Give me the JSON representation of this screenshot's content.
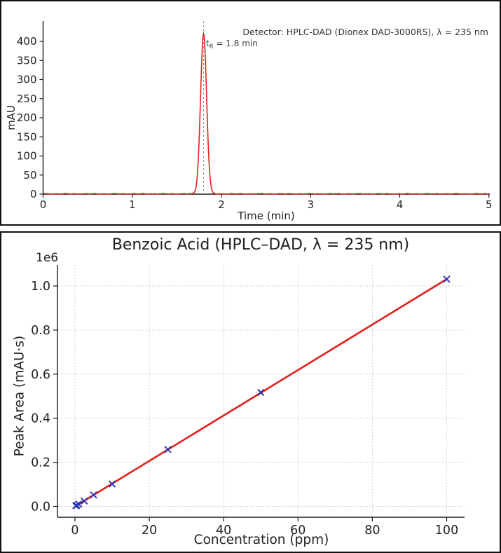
{
  "chart_data": [
    {
      "type": "line",
      "name": "hplc-chromatogram",
      "xlabel": "Time (min)",
      "ylabel": "mAU",
      "xlim": [
        0,
        5
      ],
      "ylim": [
        0,
        455
      ],
      "xticks": [
        0,
        1,
        2,
        3,
        4,
        5
      ],
      "xtick_labels": [
        "0",
        "1",
        "2",
        "3",
        "4",
        "5"
      ],
      "yticks": [
        0,
        50,
        100,
        150,
        200,
        250,
        300,
        350,
        400
      ],
      "ytick_labels": [
        "0",
        "50",
        "100",
        "150",
        "200",
        "250",
        "300",
        "350",
        "400"
      ],
      "grid": false,
      "line_color": "#e02420",
      "baseline_mAU": 1,
      "peak": {
        "retention_time_min": 1.8,
        "height_mAU": 420,
        "sigma_min": 0.034
      },
      "marker_line": {
        "x": 1.8,
        "color": "#8a8a8a",
        "style": "dashed"
      },
      "detector_note": "Detector: HPLC-DAD (Dionex DAD-3000RS), λ = 235 nm",
      "retention_label": {
        "base": "t",
        "sub": "R",
        "rest": " = 1.8 min"
      }
    },
    {
      "type": "scatter",
      "name": "calibration-curve",
      "title": "Benzoic Acid (HPLC–DAD, λ = 235 nm)",
      "xlabel": "Concentration (ppm)",
      "ylabel": "Peak Area (mAU·s)",
      "y_offset_label": "1e6",
      "xlim": [
        -4.7,
        104.8
      ],
      "ylim": [
        -50000,
        1100000
      ],
      "xticks": [
        0,
        20,
        40,
        60,
        80,
        100
      ],
      "xtick_labels": [
        "0",
        "20",
        "40",
        "60",
        "80",
        "100"
      ],
      "yticks": [
        0,
        200000,
        400000,
        600000,
        800000,
        1000000
      ],
      "ytick_labels": [
        "0.0",
        "0.2",
        "0.4",
        "0.6",
        "0.8",
        "1.0"
      ],
      "grid": true,
      "grid_color": "#c9c9c9",
      "points": {
        "marker": "x",
        "color": "#2a35b0",
        "x_ppm": [
          0.25,
          0.5,
          1,
          2.5,
          5,
          10,
          25,
          50,
          100
        ],
        "y_mAUs": [
          2600,
          5200,
          10400,
          24500,
          52000,
          101500,
          258000,
          517000,
          1031000
        ]
      },
      "fit_line": {
        "color": "#e01f1c",
        "slope_mAUs_per_ppm": 10310,
        "intercept_mAUs": 0,
        "x_start_ppm": 0.25,
        "x_end_ppm": 100
      }
    }
  ]
}
